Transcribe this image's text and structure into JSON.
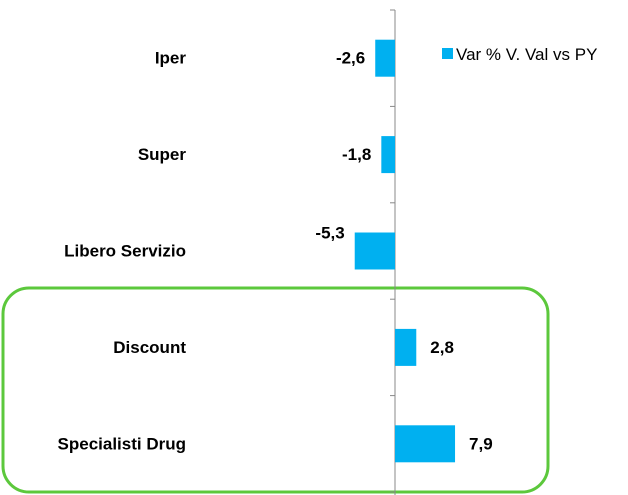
{
  "chart_data": {
    "type": "barh",
    "categories": [
      "Iper",
      "Super",
      "Libero Servizio",
      "Discount",
      "Specialisti Drug"
    ],
    "series": [
      {
        "name": "Var % V. Val vs PY",
        "color": "#00b0f0",
        "values": [
          -2.6,
          -1.8,
          -5.3,
          2.8,
          7.9
        ],
        "value_labels": [
          "-2,6",
          "-1,8",
          "-5,3",
          "2,8",
          "7,9"
        ]
      }
    ],
    "xlim": [
      -10,
      25
    ],
    "legend": "top-right"
  }
}
